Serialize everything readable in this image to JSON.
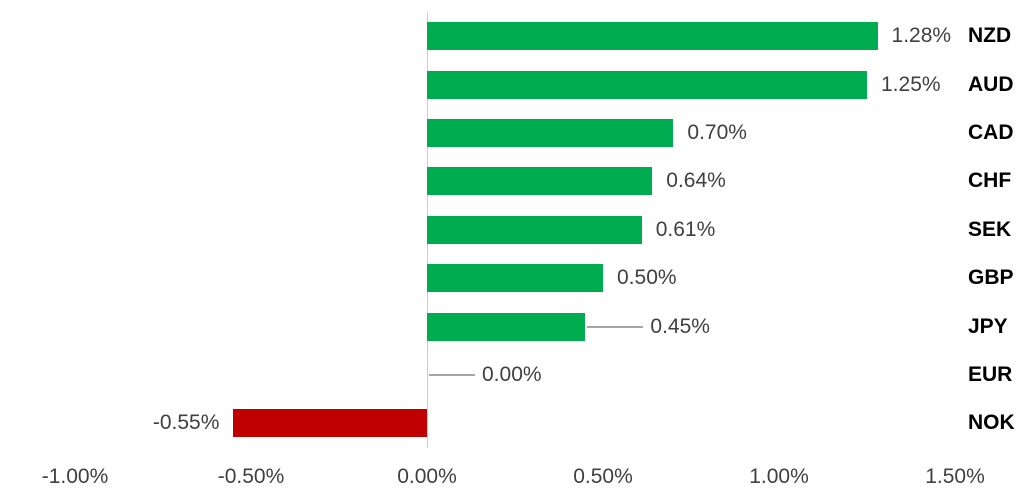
{
  "chart_data": {
    "type": "bar",
    "orientation": "horizontal",
    "title": "",
    "categories": [
      "NZD",
      "AUD",
      "CAD",
      "CHF",
      "SEK",
      "GBP",
      "JPY",
      "EUR",
      "NOK"
    ],
    "values": [
      1.28,
      1.25,
      0.7,
      0.64,
      0.61,
      0.5,
      0.45,
      0.0,
      -0.55
    ],
    "value_labels": [
      "1.28%",
      "1.25%",
      "0.70%",
      "0.64%",
      "0.61%",
      "0.50%",
      "0.45%",
      "0.00%",
      "-0.55%"
    ],
    "has_leader_line": [
      false,
      false,
      false,
      false,
      false,
      false,
      true,
      true,
      false
    ],
    "x_axis": {
      "min": -1.0,
      "max": 1.5,
      "tick_values": [
        -1.0,
        -0.5,
        0.0,
        0.5,
        1.0,
        1.5
      ],
      "tick_labels": [
        "-1.00%",
        "-0.50%",
        "0.00%",
        "0.50%",
        "1.00%",
        "1.50%"
      ]
    },
    "grid": false,
    "legend": null,
    "colors": {
      "positive_bar": "#00AC50",
      "negative_bar": "#C00000",
      "axis_line": "#CCCCCC",
      "leader_line": "#A6A6A6",
      "value_label": "#404040",
      "category_label": "#000000",
      "tick_label": "#404040",
      "background": "#FFFFFF"
    }
  }
}
